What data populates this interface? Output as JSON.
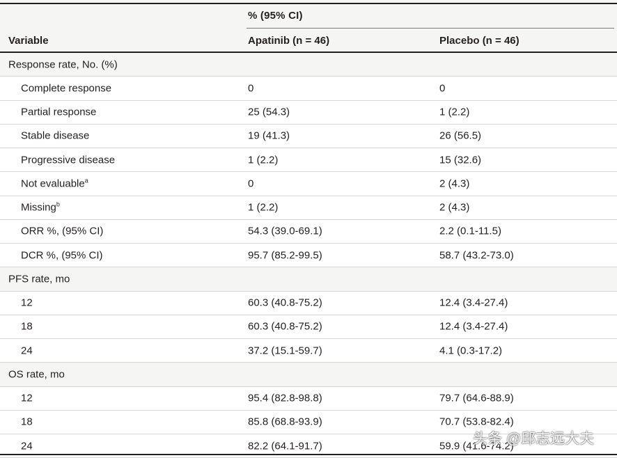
{
  "header": {
    "group_label": "% (95% CI)",
    "col_variable": "Variable",
    "col_apatinib": "Apatinib (n = 46)",
    "col_placebo": "Placebo (n = 46)"
  },
  "rows": [
    {
      "type": "section",
      "label": "Response rate, No. (%)",
      "apatinib": "",
      "placebo": "",
      "sup": ""
    },
    {
      "type": "data",
      "label": "Complete response",
      "apatinib": "0",
      "placebo": "0",
      "sup": ""
    },
    {
      "type": "data",
      "label": "Partial response",
      "apatinib": "25 (54.3)",
      "placebo": "1 (2.2)",
      "sup": ""
    },
    {
      "type": "data",
      "label": "Stable disease",
      "apatinib": "19 (41.3)",
      "placebo": "26 (56.5)",
      "sup": ""
    },
    {
      "type": "data",
      "label": "Progressive disease",
      "apatinib": "1 (2.2)",
      "placebo": "15 (32.6)",
      "sup": ""
    },
    {
      "type": "data",
      "label": "Not evaluable",
      "apatinib": "0",
      "placebo": "2 (4.3)",
      "sup": "a"
    },
    {
      "type": "data",
      "label": "Missing",
      "apatinib": "1 (2.2)",
      "placebo": "2 (4.3)",
      "sup": "b"
    },
    {
      "type": "data",
      "label": "ORR %, (95% CI)",
      "apatinib": "54.3 (39.0-69.1)",
      "placebo": "2.2 (0.1-11.5)",
      "sup": ""
    },
    {
      "type": "data",
      "label": "DCR %, (95% CI)",
      "apatinib": "95.7 (85.2-99.5)",
      "placebo": "58.7 (43.2-73.0)",
      "sup": ""
    },
    {
      "type": "section",
      "label": "PFS rate, mo",
      "apatinib": "",
      "placebo": "",
      "sup": ""
    },
    {
      "type": "data",
      "label": "12",
      "apatinib": "60.3 (40.8-75.2)",
      "placebo": "12.4 (3.4-27.4)",
      "sup": ""
    },
    {
      "type": "data",
      "label": "18",
      "apatinib": "60.3 (40.8-75.2)",
      "placebo": "12.4 (3.4-27.4)",
      "sup": ""
    },
    {
      "type": "data",
      "label": "24",
      "apatinib": "37.2 (15.1-59.7)",
      "placebo": "4.1 (0.3-17.2)",
      "sup": ""
    },
    {
      "type": "section",
      "label": "OS rate, mo",
      "apatinib": "",
      "placebo": "",
      "sup": ""
    },
    {
      "type": "data",
      "label": "12",
      "apatinib": "95.4 (82.8-98.8)",
      "placebo": "79.7 (64.6-88.9)",
      "sup": ""
    },
    {
      "type": "data",
      "label": "18",
      "apatinib": "85.8 (68.8-93.9)",
      "placebo": "70.7 (53.8-82.4)",
      "sup": ""
    },
    {
      "type": "data",
      "label": "24",
      "apatinib": "82.2 (64.1-91.7)",
      "placebo": "59.9 (41.6-74.2)",
      "sup": ""
    }
  ],
  "watermark": "头条 @邱志远大夫"
}
